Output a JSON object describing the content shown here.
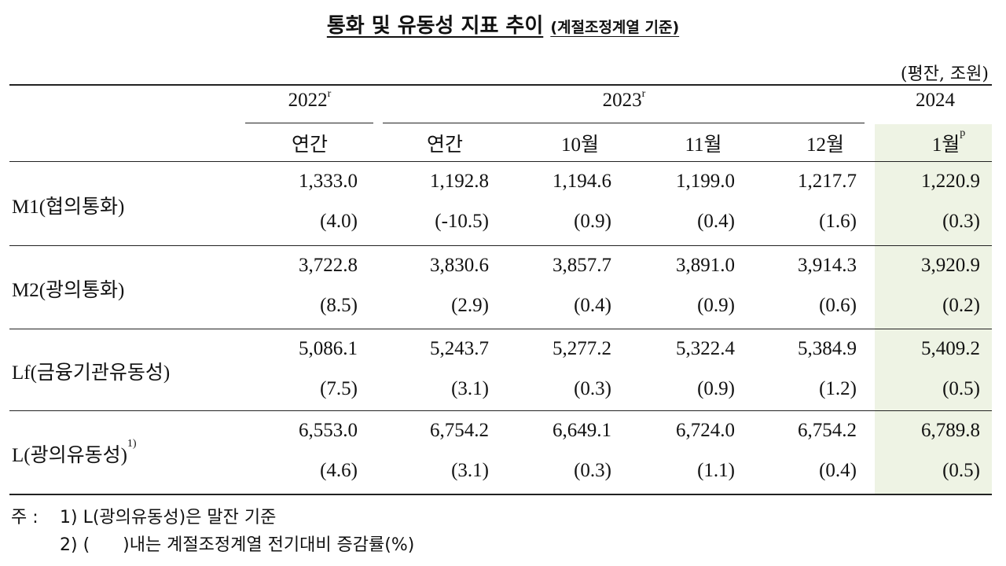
{
  "title": "통화 및 유동성 지표 추이",
  "subtitle": "(계절조정계열 기준)",
  "unit": "(평잔, 조원)",
  "table": {
    "years": [
      {
        "label": "2022",
        "mark": "r"
      },
      {
        "label": "2023",
        "mark": "r"
      },
      {
        "label": "2024"
      }
    ],
    "columns": [
      {
        "label": "연간"
      },
      {
        "label": "연간"
      },
      {
        "label": "10월"
      },
      {
        "label": "11월"
      },
      {
        "label": "12월"
      },
      {
        "label": "1월",
        "mark": "p"
      }
    ],
    "rows": [
      {
        "label": "M1(협의통화)",
        "values": [
          "1,333.0",
          "1,192.8",
          "1,194.6",
          "1,199.0",
          "1,217.7",
          "1,220.9"
        ],
        "changes": [
          "(4.0)",
          "(-10.5)",
          "(0.9)",
          "(0.4)",
          "(1.6)",
          "(0.3)"
        ]
      },
      {
        "label": "M2(광의통화)",
        "values": [
          "3,722.8",
          "3,830.6",
          "3,857.7",
          "3,891.0",
          "3,914.3",
          "3,920.9"
        ],
        "changes": [
          "(8.5)",
          "(2.9)",
          "(0.4)",
          "(0.9)",
          "(0.6)",
          "(0.2)"
        ]
      },
      {
        "label": "Lf(금융기관유동성)",
        "values": [
          "5,086.1",
          "5,243.7",
          "5,277.2",
          "5,322.4",
          "5,384.9",
          "5,409.2"
        ],
        "changes": [
          "(7.5)",
          "(3.1)",
          "(0.3)",
          "(0.9)",
          "(1.2)",
          "(0.5)"
        ]
      },
      {
        "label": "L(광의유동성)",
        "note": "1)",
        "values": [
          "6,553.0",
          "6,754.2",
          "6,649.1",
          "6,724.0",
          "6,754.2",
          "6,789.8"
        ],
        "changes": [
          "(4.6)",
          "(3.1)",
          "(0.3)",
          "(1.1)",
          "(0.4)",
          "(0.5)"
        ]
      }
    ]
  },
  "notes": {
    "marker": "주 :",
    "items": [
      "1) L(광의유동성)은 말잔 기준",
      "2) (      )내는 계절조정계열 전기대비 증감률(%)"
    ]
  }
}
